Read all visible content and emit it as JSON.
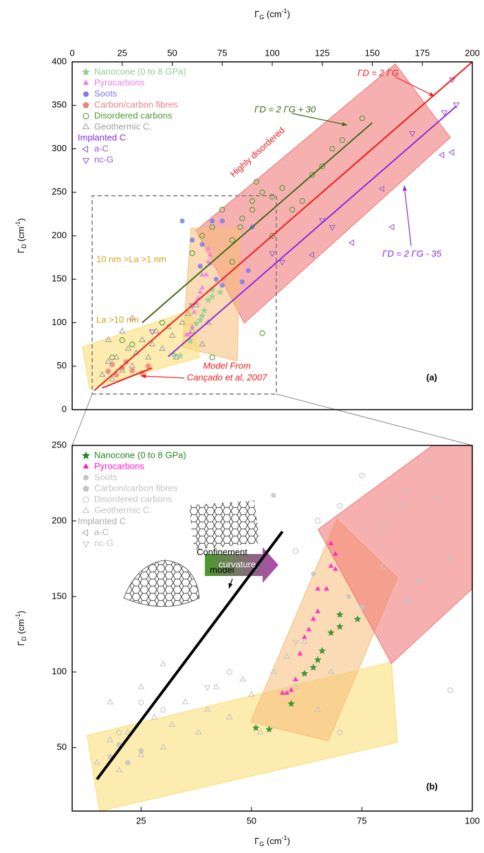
{
  "chart_data": [
    {
      "type": "scatter",
      "x_label": {
        "symbol": "Γ",
        "sub": "G",
        "unit": " (cm",
        "sup": "-1",
        "close": ")"
      },
      "y_label": {
        "symbol": "Γ",
        "sub": "D",
        "unit": " (cm",
        "sup": "-1",
        "close": ")"
      },
      "x_axis_position": "top",
      "xlim": [
        0,
        200
      ],
      "xticks": [
        0,
        25,
        50,
        75,
        100,
        125,
        150,
        175,
        200
      ],
      "ylim": [
        0,
        400
      ],
      "yticks": [
        0,
        50,
        100,
        150,
        200,
        250,
        300,
        350,
        400
      ],
      "legend": "top-left",
      "legend_group": "Implanted C",
      "regions": [
        {
          "color": "#f07070",
          "points": [
            [
              61.9,
              206
            ],
            [
              161.5,
              397.6
            ],
            [
              189,
              313
            ],
            [
              86,
              99.6
            ]
          ]
        },
        {
          "color": "#f5be78",
          "points": [
            [
              59.5,
              208.7
            ],
            [
              84,
              208.7
            ],
            [
              82.5,
              56
            ],
            [
              55,
              72
            ]
          ]
        },
        {
          "color": "#fadc6e",
          "points": [
            [
              5.2,
              72
            ],
            [
              60,
              115
            ],
            [
              63.6,
              60
            ],
            [
              8.6,
              24.5
            ]
          ]
        },
        {
          "color": "#777777",
          "dashed": true,
          "zoom": true,
          "points": [
            [
              10,
              18
            ],
            [
              102,
              18
            ],
            [
              102,
              246
            ],
            [
              10,
              246
            ]
          ]
        }
      ],
      "lines": [
        {
          "color": "#ee1c1c",
          "x": [
            11,
            200
          ],
          "values": [
            22,
            400
          ]
        },
        {
          "color": "#3d6b1a",
          "x": [
            35,
            150
          ],
          "values": [
            100,
            330
          ]
        },
        {
          "color": "#8a2be2",
          "x": [
            48,
            192
          ],
          "values": [
            61,
            349
          ]
        },
        {
          "color": "#ee1c1c",
          "x": [
            15,
            28,
            40
          ],
          "values": [
            25,
            37,
            48
          ]
        }
      ],
      "series": [
        {
          "name": "Nanocone (0 to 8 GPa)",
          "color": "#8fd08f",
          "marker": "star",
          "x": [
            51,
            54,
            59,
            62,
            64,
            65,
            66,
            68,
            70,
            70,
            74
          ],
          "values": [
            63,
            62,
            79,
            99,
            103,
            108,
            114,
            126,
            130,
            138,
            135
          ]
        },
        {
          "name": "Pyrocarbons",
          "color": "#f07cf0",
          "marker": "triangle",
          "x": [
            57,
            58,
            59,
            60,
            61,
            62,
            63,
            64,
            65,
            65,
            67,
            68,
            68,
            69,
            69
          ],
          "values": [
            86,
            86,
            88,
            95,
            112,
            123,
            128,
            135,
            140,
            155,
            155,
            185,
            170,
            168,
            178
          ]
        },
        {
          "name": "Soots",
          "color": "#7b7bee",
          "marker": "circle",
          "x": [
            55,
            70,
            75,
            64,
            72,
            85,
            88,
            90,
            75,
            60,
            65
          ],
          "values": [
            217,
            217,
            217,
            165,
            150,
            147,
            160,
            210,
            143,
            195,
            190
          ]
        },
        {
          "name": "Carbon/carbon fibres",
          "color": "#f08080",
          "marker": "pentagon",
          "x": [
            18,
            20,
            22,
            25,
            27,
            30,
            35,
            38
          ],
          "values": [
            44,
            52,
            40,
            48,
            55,
            45,
            42,
            50
          ]
        },
        {
          "name": "Disordered carbons",
          "color": "#4f9a34",
          "marker": "circle-open",
          "x": [
            20,
            25,
            30,
            45,
            60,
            65,
            70,
            75,
            80,
            85,
            90,
            95,
            100,
            105,
            110,
            115,
            120,
            125,
            130,
            135,
            145,
            92,
            90,
            80,
            100,
            95,
            70,
            84
          ],
          "values": [
            60,
            80,
            75,
            100,
            180,
            200,
            210,
            230,
            195,
            220,
            240,
            250,
            245,
            255,
            230,
            240,
            270,
            280,
            300,
            310,
            335,
            262,
            230,
            170,
            200,
            88,
            60,
            210
          ]
        },
        {
          "name": "Geothermic C.",
          "color": "#a0a0a0",
          "marker": "triangle-open",
          "x": [
            15,
            18,
            20,
            22,
            25,
            28,
            30,
            32,
            35,
            38,
            40,
            42,
            45,
            48,
            50,
            55,
            58,
            60,
            62,
            65,
            68,
            25,
            18,
            30,
            52
          ],
          "values": [
            40,
            55,
            35,
            60,
            45,
            70,
            50,
            65,
            80,
            60,
            75,
            90,
            70,
            95,
            85,
            100,
            110,
            90,
            120,
            75,
            100,
            90,
            80,
            105,
            60
          ]
        },
        {
          "name": "a-C",
          "color": "#9a5fd0",
          "marker": "left-open",
          "in_group": true,
          "x": [
            155,
            160,
            185,
            190,
            140,
            120
          ],
          "values": [
            254,
            210,
            293,
            296,
            192,
            178
          ]
        },
        {
          "name": "nc-G",
          "color": "#9a5fd0",
          "marker": "down-open",
          "in_group": true,
          "x": [
            190,
            192,
            186,
            170,
            130,
            125,
            105,
            100,
            60,
            40
          ],
          "values": [
            380,
            351,
            342,
            318,
            210,
            218,
            170,
            180,
            120,
            90
          ]
        }
      ],
      "annotations": [
        {
          "text": "ΓD = 2 ΓG",
          "color": "#ee1c1c"
        },
        {
          "text": "ΓD = 2 ΓG + 30",
          "color": "#3d6b1a"
        },
        {
          "text": "ΓD = 2 ΓG - 35",
          "color": "#8a2be2"
        },
        {
          "text": "Highly disordered",
          "color": "#ee1c1c"
        },
        {
          "text": "10 nm >La >1 nm",
          "color": "#d4a017"
        },
        {
          "text": "La >10 nm",
          "color": "#d4a017"
        },
        {
          "text": "Model From",
          "color": "#ee1c1c"
        },
        {
          "text": "Cançado et al, 2007",
          "color": "#ee1c1c"
        },
        {
          "text": "(a)",
          "color": "#000000"
        }
      ]
    },
    {
      "type": "scatter",
      "x_label": {
        "symbol": "Γ",
        "sub": "G",
        "unit": " (cm",
        "sup": "-1",
        "close": ")"
      },
      "y_label": {
        "symbol": "Γ",
        "sub": "D",
        "unit": " (cm",
        "sup": "-1",
        "close": ")"
      },
      "x_axis_position": "bottom",
      "xlim": [
        9.4,
        100
      ],
      "xticks": [
        25,
        50,
        75,
        100
      ],
      "ylim": [
        8,
        250
      ],
      "yticks": [
        50,
        100,
        150,
        200,
        250
      ],
      "legend": "top-left",
      "legend_group": "Implanted C",
      "regions": [
        {
          "color": "#fadc6e",
          "points": [
            [
              12.8,
              58
            ],
            [
              81.7,
              106.6
            ],
            [
              83,
              53.5
            ],
            [
              15.6,
              8
            ]
          ]
        },
        {
          "color": "#f5be78",
          "points": [
            [
              69.3,
              201
            ],
            [
              83,
              162.5
            ],
            [
              67.4,
              54.4
            ],
            [
              49.8,
              67
            ]
          ]
        },
        {
          "color": "#f07070",
          "points": [
            [
              65.1,
              194.4
            ],
            [
              91,
              250
            ],
            [
              99.9,
              250
            ],
            [
              99.9,
              155
            ],
            [
              81.7,
              105.7
            ]
          ]
        }
      ],
      "lines": [
        {
          "color": "#000000",
          "width": 4,
          "x": [
            15,
            57
          ],
          "values": [
            29,
            193
          ]
        }
      ],
      "series": [
        {
          "name": "Nanocone (0 to 8 GPa)",
          "color": "#1f8a1f",
          "marker": "star",
          "x": [
            51,
            54,
            59,
            62,
            64,
            65,
            66,
            68,
            70,
            70,
            74
          ],
          "values": [
            63,
            62,
            79,
            99,
            103,
            108,
            114,
            126,
            130,
            138,
            135
          ]
        },
        {
          "name": "Pyrocarbons",
          "color": "#ff19d0",
          "marker": "triangle",
          "x": [
            57,
            58,
            59,
            60,
            61,
            62,
            63,
            64,
            65,
            65,
            67,
            68,
            68,
            69,
            69
          ],
          "values": [
            86,
            86,
            88,
            95,
            112,
            123,
            128,
            135,
            140,
            155,
            155,
            185,
            170,
            168,
            178
          ]
        },
        {
          "name": "Soots",
          "color": "#c4c4c4",
          "marker": "circle",
          "x": [
            55,
            64,
            72,
            85,
            88,
            75
          ],
          "values": [
            217,
            165,
            150,
            147,
            160,
            143
          ]
        },
        {
          "name": "Carbon/carbon fibres",
          "color": "#c4c4c4",
          "marker": "pentagon",
          "x": [
            18,
            20,
            22,
            25
          ],
          "values": [
            44,
            52,
            40,
            48
          ]
        },
        {
          "name": "Disordered carbons",
          "color": "#c4c4c4",
          "marker": "circle-open",
          "x": [
            20,
            25,
            30,
            45,
            60,
            65,
            70,
            75,
            80,
            85,
            90,
            95,
            70,
            84,
            80,
            92
          ],
          "values": [
            60,
            80,
            75,
            100,
            180,
            200,
            210,
            230,
            195,
            220,
            240,
            88,
            60,
            210,
            170,
            215
          ]
        },
        {
          "name": "Geothermic C.",
          "color": "#c4c4c4",
          "marker": "triangle-open",
          "x": [
            15,
            18,
            20,
            22,
            25,
            28,
            30,
            32,
            35,
            38,
            40,
            42,
            45,
            48,
            50,
            55,
            58,
            60,
            62,
            65,
            68,
            25,
            18,
            30,
            52
          ],
          "values": [
            40,
            55,
            35,
            60,
            45,
            70,
            50,
            65,
            80,
            60,
            75,
            90,
            70,
            95,
            85,
            100,
            110,
            90,
            120,
            75,
            100,
            90,
            80,
            105,
            60
          ]
        },
        {
          "name": "a-C",
          "color": "#b0b0b0",
          "marker": "left-open",
          "in_group": true,
          "x": [],
          "values": []
        },
        {
          "name": "nc-G",
          "color": "#c4c4c4",
          "marker": "down-open",
          "in_group": true,
          "x": [
            60,
            40,
            95
          ],
          "values": [
            120,
            90,
            175
          ]
        }
      ],
      "annotations": [
        {
          "text": "Confinement",
          "color": "#000000"
        },
        {
          "text": "model",
          "color": "#000000"
        },
        {
          "text": "curvature",
          "color": "#ffffff"
        },
        {
          "text": "(b)",
          "color": "#000000"
        }
      ]
    }
  ]
}
